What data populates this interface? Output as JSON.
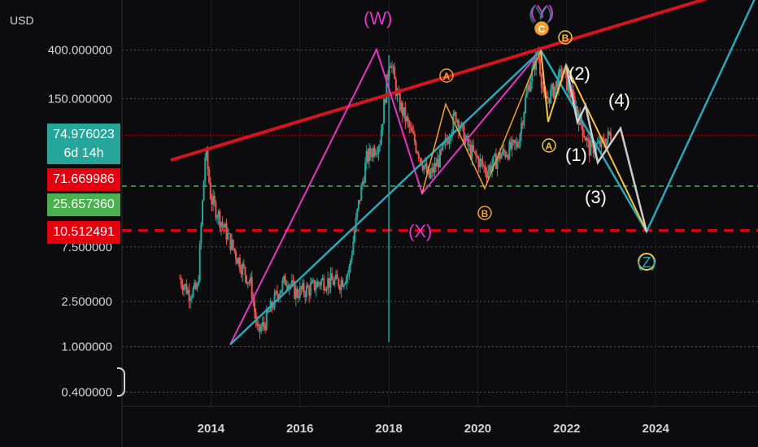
{
  "currency_label": "USD",
  "price_tags": {
    "current_price": "74.976023",
    "countdown": "6d 14h",
    "level_red": "71.669986",
    "level_green": "25.657360",
    "level_red2": "10.512491"
  },
  "colors": {
    "background": "#0c0c0f",
    "magenta": "#e535c6",
    "teal": "#2aa8b8",
    "red_line": "#d4141e",
    "orange": "#f0a030",
    "yellow": "#f5c542",
    "white_wave": "#ffffff",
    "candle_up": "#26a69a",
    "candle_down": "#ef5350"
  },
  "chart_data": {
    "type": "candlestick",
    "scale": "log",
    "ylabel": "USD",
    "y_ticks": [
      "400.000000",
      "150.000000",
      "7.500000",
      "2.500000",
      "1.000000",
      "0.400000"
    ],
    "y_tick_values": [
      400,
      150,
      7.5,
      2.5,
      1.0,
      0.4
    ],
    "x_ticks": [
      "2014",
      "2016",
      "2018",
      "2020",
      "2022",
      "2024"
    ],
    "x_tick_values": [
      2014,
      2016,
      2018,
      2020,
      2022,
      2024
    ],
    "xlim": [
      2012.0,
      2026.3
    ],
    "ylim": [
      0.3,
      1100
    ],
    "horizontal_levels": [
      {
        "value": 71.669986,
        "style": "red-dotted"
      },
      {
        "value": 25.65736,
        "style": "green-dashed"
      },
      {
        "value": 10.512491,
        "style": "red-dashed"
      }
    ],
    "price_path": [
      [
        2013.3,
        4.0
      ],
      [
        2013.5,
        3.0
      ],
      [
        2013.7,
        3.2
      ],
      [
        2013.88,
        55
      ],
      [
        2014.0,
        20
      ],
      [
        2014.3,
        11
      ],
      [
        2014.6,
        6
      ],
      [
        2014.9,
        3.5
      ],
      [
        2015.05,
        1.3
      ],
      [
        2015.2,
        1.6
      ],
      [
        2015.5,
        3.0
      ],
      [
        2015.7,
        4.0
      ],
      [
        2015.9,
        3.0
      ],
      [
        2016.2,
        3.2
      ],
      [
        2016.5,
        3.8
      ],
      [
        2016.9,
        3.7
      ],
      [
        2017.1,
        4.5
      ],
      [
        2017.3,
        16
      ],
      [
        2017.5,
        45
      ],
      [
        2017.8,
        65
      ],
      [
        2018.02,
        360
      ],
      [
        2018.2,
        150
      ],
      [
        2018.6,
        60
      ],
      [
        2018.9,
        30
      ],
      [
        2019.2,
        50
      ],
      [
        2019.5,
        110
      ],
      [
        2019.8,
        55
      ],
      [
        2020.2,
        35
      ],
      [
        2020.5,
        48
      ],
      [
        2020.9,
        60
      ],
      [
        2021.1,
        170
      ],
      [
        2021.35,
        400
      ],
      [
        2021.5,
        140
      ],
      [
        2021.7,
        180
      ],
      [
        2021.9,
        260
      ],
      [
        2022.2,
        130
      ],
      [
        2022.5,
        55
      ],
      [
        2022.8,
        60
      ],
      [
        2023.0,
        74.98
      ]
    ],
    "wave_annotations": [
      {
        "label": "(W)",
        "x": 2018.0,
        "y": 400,
        "color": "magenta"
      },
      {
        "label": "(X)",
        "x": 2019.0,
        "y": 20,
        "color": "magenta"
      },
      {
        "label": "(Y)",
        "x": 2021.35,
        "y": 400,
        "color": "magenta"
      },
      {
        "label": "(Y)",
        "x": 2021.35,
        "y": 400,
        "color": "teal"
      },
      {
        "label": "A",
        "x": 2019.5,
        "y": 110,
        "color": "orange"
      },
      {
        "label": "B",
        "x": 2020.2,
        "y": 35,
        "color": "orange"
      },
      {
        "label": "C",
        "x": 2021.35,
        "y": 400,
        "color": "orange"
      },
      {
        "label": "A",
        "x": 2021.6,
        "y": 80,
        "color": "yellow"
      },
      {
        "label": "B",
        "x": 2021.9,
        "y": 260,
        "color": "yellow"
      },
      {
        "label": "(1)",
        "x": 2022.35,
        "y": 55,
        "color": "white"
      },
      {
        "label": "(2)",
        "x": 2022.6,
        "y": 200,
        "color": "white"
      },
      {
        "label": "(3)",
        "x": 2022.8,
        "y": 25,
        "color": "white"
      },
      {
        "label": "(4)",
        "x": 2023.1,
        "y": 100,
        "color": "white"
      },
      {
        "label": "(Z)",
        "x": 2023.5,
        "y": 5,
        "color": "teal"
      }
    ]
  }
}
